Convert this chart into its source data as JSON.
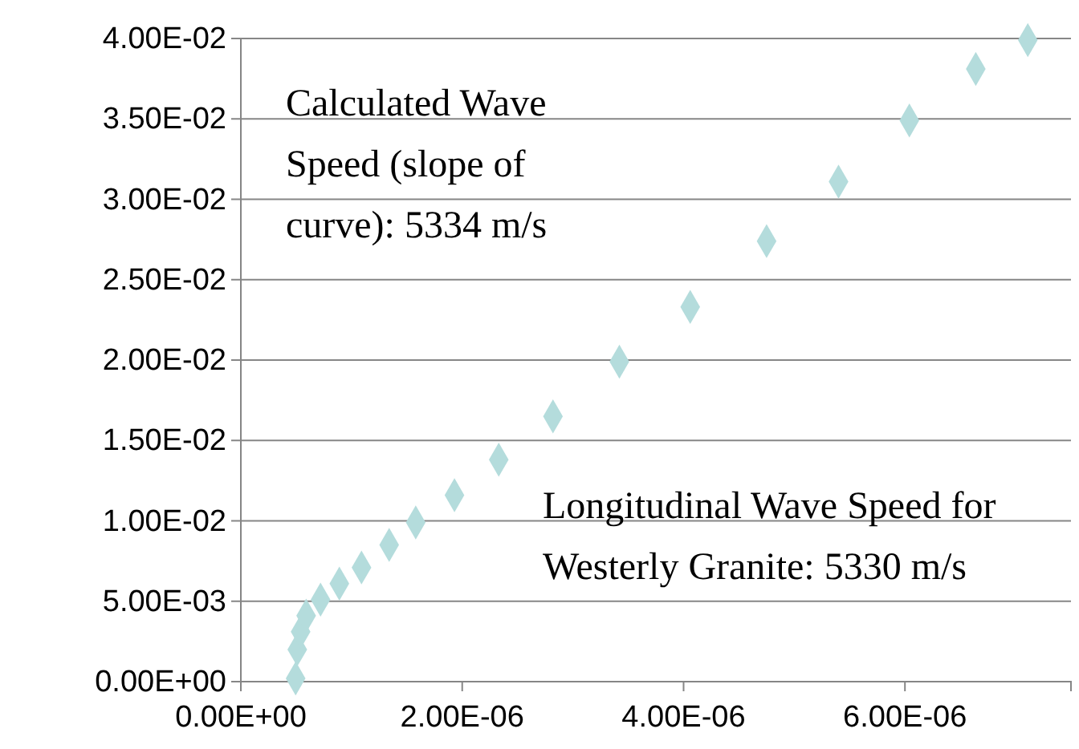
{
  "chart_data": {
    "type": "scatter",
    "marker": "diamond",
    "grid": "y",
    "x": [
      4.95e-07,
      5.1e-07,
      5.4e-07,
      5.9e-07,
      7.2e-07,
      8.9e-07,
      1.09e-06,
      1.34e-06,
      1.58e-06,
      1.93e-06,
      2.33e-06,
      2.82e-06,
      3.42e-06,
      4.06e-06,
      4.75e-06,
      5.4e-06,
      6.04e-06,
      6.64e-06,
      7.11e-06
    ],
    "series": [
      {
        "color": "#b4dcdc",
        "values": [
          0.0002,
          0.002,
          0.0031,
          0.0041,
          0.0051,
          0.0061,
          0.0071,
          0.0085,
          0.0099,
          0.0116,
          0.0138,
          0.0165,
          0.0199,
          0.0233,
          0.0274,
          0.0311,
          0.0349,
          0.0381,
          0.0399
        ]
      }
    ],
    "xlim": [
      0,
      7.5e-06
    ],
    "xticks": [
      {
        "value": 0,
        "label": "0.00E+00"
      },
      {
        "value": 2e-06,
        "label": "2.00E-06"
      },
      {
        "value": 4e-06,
        "label": "4.00E-06"
      },
      {
        "value": 6e-06,
        "label": "6.00E-06"
      }
    ],
    "ylim": [
      0,
      0.04
    ],
    "yticks": [
      {
        "value": 0,
        "label": "0.00E+00"
      },
      {
        "value": 0.005,
        "label": "5.00E-03"
      },
      {
        "value": 0.01,
        "label": "1.00E-02"
      },
      {
        "value": 0.015,
        "label": "1.50E-02"
      },
      {
        "value": 0.02,
        "label": "2.00E-02"
      },
      {
        "value": 0.025,
        "label": "2.50E-02"
      },
      {
        "value": 0.03,
        "label": "3.00E-02"
      },
      {
        "value": 0.035,
        "label": "3.50E-02"
      },
      {
        "value": 0.04,
        "label": "4.00E-02"
      }
    ],
    "annotations": [
      "Calculated Wave Speed (slope of curve): 5334 m/s",
      "Longitudinal Wave Speed for Westerly Granite: 5330 m/s"
    ]
  }
}
